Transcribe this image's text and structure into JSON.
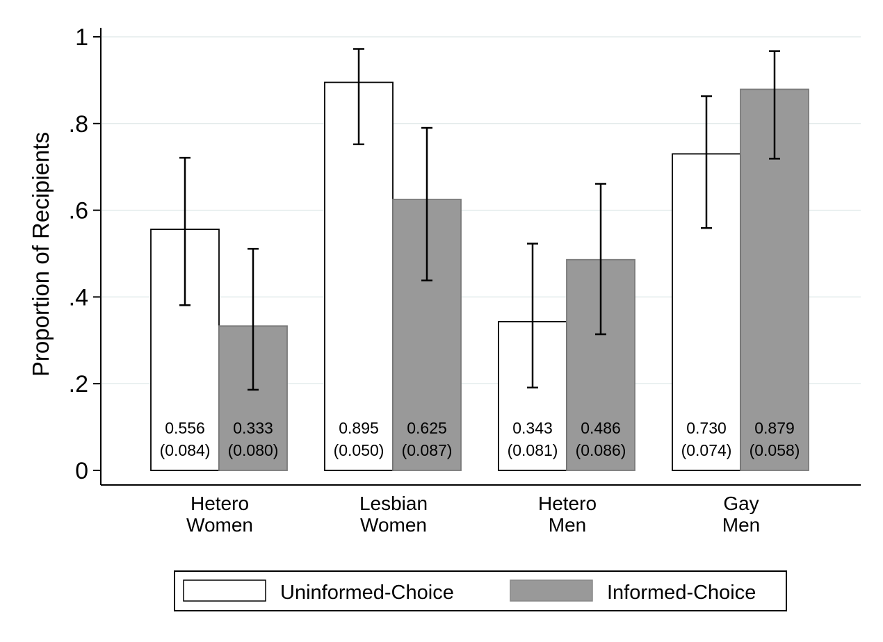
{
  "chart_data": {
    "type": "bar",
    "title": "",
    "xlabel": "",
    "ylabel": "Proportion of Recipients",
    "ylim": [
      0,
      1
    ],
    "yticks": [
      {
        "value": 0,
        "label": "0"
      },
      {
        "value": 0.2,
        "label": ".2"
      },
      {
        "value": 0.4,
        "label": ".4"
      },
      {
        "value": 0.6,
        "label": ".6"
      },
      {
        "value": 0.8,
        "label": ".8"
      },
      {
        "value": 1,
        "label": "1"
      }
    ],
    "grid": true,
    "legend_position": "bottom",
    "categories": [
      {
        "line1": "Hetero",
        "line2": "Women"
      },
      {
        "line1": "Lesbian",
        "line2": "Women"
      },
      {
        "line1": "Hetero",
        "line2": "Men"
      },
      {
        "line1": "Gay",
        "line2": "Men"
      }
    ],
    "series": [
      {
        "name": "Uninformed-Choice",
        "color": "#ffffff",
        "values": [
          0.556,
          0.895,
          0.343,
          0.73
        ],
        "value_labels": [
          "0.556",
          "0.895",
          "0.343",
          "0.730"
        ],
        "se_labels": [
          "(0.084)",
          "(0.050)",
          "(0.081)",
          "(0.074)"
        ],
        "ci_low": [
          0.381,
          0.752,
          0.191,
          0.559
        ],
        "ci_high": [
          0.721,
          0.972,
          0.523,
          0.863
        ]
      },
      {
        "name": "Informed-Choice",
        "color": "#999999",
        "values": [
          0.333,
          0.625,
          0.486,
          0.879
        ],
        "value_labels": [
          "0.333",
          "0.625",
          "0.486",
          "0.879"
        ],
        "se_labels": [
          "(0.080)",
          "(0.087)",
          "(0.086)",
          "(0.058)"
        ],
        "ci_low": [
          0.186,
          0.438,
          0.314,
          0.719
        ],
        "ci_high": [
          0.511,
          0.79,
          0.661,
          0.967
        ]
      }
    ]
  }
}
